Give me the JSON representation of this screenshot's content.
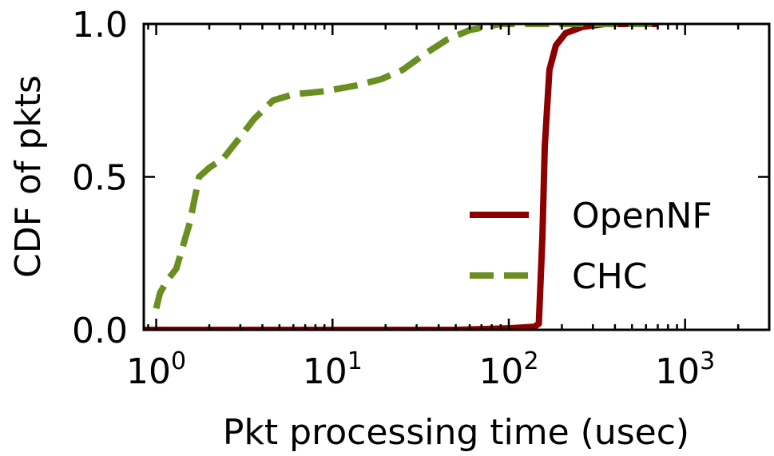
{
  "chart_data": {
    "type": "line",
    "title": "",
    "xlabel": "Pkt processing time (usec)",
    "ylabel": "CDF of pkts",
    "xscale": "log",
    "xlim": [
      0.85,
      3000
    ],
    "ylim": [
      0.0,
      1.0
    ],
    "x_ticks": [
      {
        "value": 1,
        "base": "10",
        "exp": "0"
      },
      {
        "value": 10,
        "base": "10",
        "exp": "1"
      },
      {
        "value": 100,
        "base": "10",
        "exp": "2"
      },
      {
        "value": 1000,
        "base": "10",
        "exp": "3"
      }
    ],
    "y_ticks": [
      {
        "value": 0.0,
        "label": "0.0"
      },
      {
        "value": 0.5,
        "label": "0.5"
      },
      {
        "value": 1.0,
        "label": "1.0"
      }
    ],
    "legend_position": "center-right",
    "series": [
      {
        "name": "OpenNF",
        "color": "#8b0000",
        "style": "solid",
        "points": [
          [
            0.85,
            0.0
          ],
          [
            50,
            0.0
          ],
          [
            100,
            0.005
          ],
          [
            140,
            0.01
          ],
          [
            148,
            0.02
          ],
          [
            155,
            0.3
          ],
          [
            160,
            0.6
          ],
          [
            170,
            0.85
          ],
          [
            185,
            0.93
          ],
          [
            210,
            0.97
          ],
          [
            260,
            0.99
          ],
          [
            350,
            1.0
          ],
          [
            700,
            1.0
          ]
        ]
      },
      {
        "name": "CHC",
        "color": "#6b8e23",
        "style": "dashed",
        "points": [
          [
            1.0,
            0.07
          ],
          [
            1.05,
            0.12
          ],
          [
            1.15,
            0.16
          ],
          [
            1.3,
            0.2
          ],
          [
            1.55,
            0.35
          ],
          [
            1.75,
            0.5
          ],
          [
            2.0,
            0.53
          ],
          [
            2.4,
            0.56
          ],
          [
            2.9,
            0.62
          ],
          [
            3.6,
            0.69
          ],
          [
            4.6,
            0.75
          ],
          [
            6.0,
            0.77
          ],
          [
            9.0,
            0.78
          ],
          [
            14.0,
            0.8
          ],
          [
            19.0,
            0.82
          ],
          [
            25.0,
            0.85
          ],
          [
            33.0,
            0.9
          ],
          [
            45.0,
            0.95
          ],
          [
            60.0,
            0.98
          ],
          [
            90.0,
            1.0
          ],
          [
            200.0,
            1.0
          ],
          [
            700.0,
            1.0
          ]
        ]
      }
    ]
  }
}
